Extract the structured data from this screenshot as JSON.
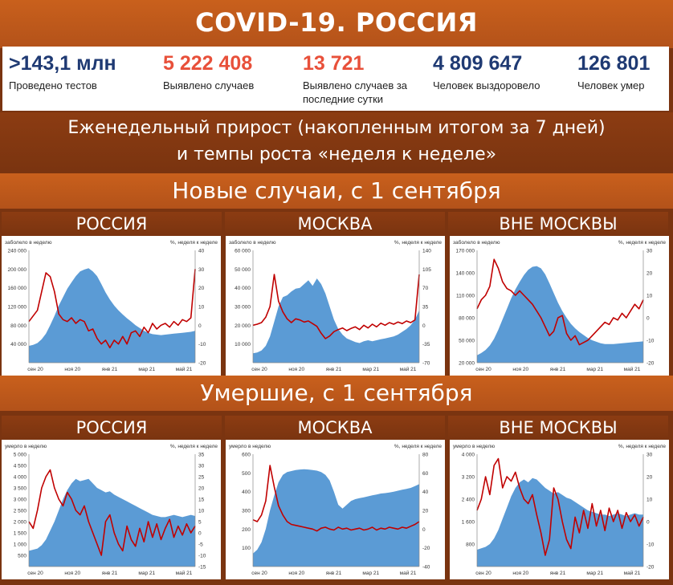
{
  "header": {
    "title": "COVID-19. РОССИЯ"
  },
  "stats": [
    {
      "value": ">143,1 млн",
      "label": "Проведено тестов",
      "color": "#1f3a73"
    },
    {
      "value": "5 222 408",
      "label": "Выявлено случаев",
      "color": "#e8503a"
    },
    {
      "value": "13 721",
      "label": "Выявлено случаев за последние сутки",
      "color": "#e8503a"
    },
    {
      "value": "4 809 647",
      "label": "Человек выздоровело",
      "color": "#1f3a73"
    },
    {
      "value": "126 801",
      "label": "Человек умер",
      "color": "#1f3a73"
    }
  ],
  "weekly_banner": {
    "line1": "Еженедельный прирост (накопленным итогом за 7 дней)",
    "line2": "и темпы роста «неделя к неделе»"
  },
  "sections": {
    "cases_title": "Новые случаи, с 1 сентября",
    "deaths_title": "Умершие, с 1 сентября"
  },
  "colors": {
    "area": "#5b9bd5",
    "line": "#c00000"
  },
  "chart_data": [
    {
      "type": "area",
      "title": "РОССИЯ",
      "section": "cases",
      "ylabel": "заболело в неделю",
      "y2label": "%, неделя к неделе",
      "xticks": [
        "сен 20",
        "ноя 20",
        "янв 21",
        "мар 21",
        "май 21"
      ],
      "ylim": [
        0,
        240000
      ],
      "yticks": [
        40000,
        80000,
        120000,
        160000,
        200000,
        240000
      ],
      "yticklabels": [
        "40 000",
        "80 000",
        "120 000",
        "160 000",
        "200 000",
        "240 000"
      ],
      "y2lim": [
        -20,
        40
      ],
      "y2ticks": [
        -20,
        -10,
        0,
        10,
        20,
        30,
        40
      ],
      "series": [
        {
          "axis": "left",
          "kind": "area",
          "values": [
            36000,
            38000,
            42000,
            50000,
            62000,
            80000,
            100000,
            122000,
            140000,
            158000,
            172000,
            185000,
            195000,
            199000,
            202000,
            195000,
            185000,
            168000,
            150000,
            135000,
            122000,
            112000,
            103000,
            95000,
            88000,
            80000,
            74000,
            68000,
            64000,
            61000,
            60000,
            59000,
            60000,
            61000,
            62000,
            63000,
            64000,
            65000,
            66000,
            68000
          ]
        },
        {
          "axis": "right",
          "kind": "line",
          "values": [
            2,
            5,
            8,
            18,
            28,
            26,
            18,
            6,
            3,
            2,
            4,
            1,
            3,
            2,
            -3,
            -2,
            -7,
            -10,
            -8,
            -12,
            -8,
            -10,
            -6,
            -10,
            -4,
            -3,
            -6,
            -1,
            -4,
            1,
            -2,
            0,
            1,
            -1,
            2,
            0,
            3,
            2,
            4,
            30
          ]
        }
      ]
    },
    {
      "type": "area",
      "title": "МОСКВА",
      "section": "cases",
      "ylabel": "заболело в неделю",
      "y2label": "%, неделя к неделе",
      "xticks": [
        "сен 20",
        "ноя 20",
        "янв 21",
        "мар 21",
        "май 21"
      ],
      "ylim": [
        0,
        60000
      ],
      "yticks": [
        10000,
        20000,
        30000,
        40000,
        50000,
        60000
      ],
      "yticklabels": [
        "10 000",
        "20 000",
        "30 000",
        "40 000",
        "50 000",
        "60 000"
      ],
      "y2lim": [
        -70,
        140
      ],
      "y2ticks": [
        -70,
        -35,
        0,
        35,
        70,
        105,
        140
      ],
      "series": [
        {
          "axis": "left",
          "kind": "area",
          "values": [
            5000,
            5500,
            6500,
            9000,
            14000,
            22000,
            30000,
            35000,
            36000,
            38000,
            39500,
            40000,
            42000,
            44000,
            41000,
            45000,
            42000,
            37000,
            30000,
            23000,
            18000,
            15000,
            13000,
            12000,
            11000,
            10500,
            11500,
            12000,
            11500,
            12000,
            12500,
            13000,
            13500,
            14000,
            15000,
            16500,
            18000,
            20000,
            23000,
            28000
          ]
        },
        {
          "axis": "right",
          "kind": "line",
          "values": [
            0,
            2,
            5,
            15,
            35,
            95,
            45,
            25,
            12,
            5,
            12,
            10,
            6,
            8,
            3,
            -2,
            -15,
            -25,
            -20,
            -12,
            -8,
            -5,
            -10,
            -6,
            -3,
            -8,
            0,
            -5,
            2,
            -3,
            4,
            0,
            5,
            2,
            6,
            3,
            8,
            5,
            10,
            95
          ]
        }
      ]
    },
    {
      "type": "area",
      "title": "ВНЕ МОСКВЫ",
      "section": "cases",
      "ylabel": "заболело в неделю",
      "y2label": "%, неделя к неделе",
      "xticks": [
        "сен 20",
        "ноя 20",
        "янв 21",
        "мар 21",
        "май 21"
      ],
      "ylim": [
        20000,
        170000
      ],
      "yticks": [
        20000,
        50000,
        80000,
        110000,
        140000,
        170000
      ],
      "yticklabels": [
        "20 000",
        "50 000",
        "80 000",
        "110 000",
        "140 000",
        "170 000"
      ],
      "y2lim": [
        -20,
        30
      ],
      "y2ticks": [
        -20,
        -10,
        0,
        10,
        20,
        30
      ],
      "series": [
        {
          "axis": "left",
          "kind": "area",
          "values": [
            30000,
            33000,
            37000,
            43000,
            52000,
            64000,
            78000,
            92000,
            106000,
            118000,
            128000,
            137000,
            144000,
            148000,
            149000,
            146000,
            138000,
            126000,
            113000,
            100000,
            89000,
            80000,
            72000,
            66000,
            61000,
            57000,
            53000,
            50000,
            48000,
            46000,
            45000,
            45000,
            45000,
            45500,
            46000,
            46500,
            47000,
            47500,
            48000,
            48500
          ]
        },
        {
          "axis": "right",
          "kind": "line",
          "values": [
            4,
            8,
            10,
            14,
            26,
            22,
            16,
            13,
            12,
            10,
            12,
            10,
            8,
            6,
            3,
            0,
            -4,
            -8,
            -6,
            0,
            1,
            -7,
            -10,
            -8,
            -12,
            -11,
            -10,
            -8,
            -6,
            -4,
            -2,
            -3,
            0,
            -1,
            2,
            0,
            3,
            6,
            4,
            8
          ]
        }
      ]
    },
    {
      "type": "area",
      "title": "РОССИЯ",
      "section": "deaths",
      "ylabel": "умерло в неделю",
      "y2label": "%, неделя к неделе",
      "xticks": [
        "сен 20",
        "ноя 20",
        "янв 21",
        "мар 21",
        "май 21"
      ],
      "ylim": [
        0,
        5000
      ],
      "yticks": [
        500,
        1000,
        1500,
        2000,
        2500,
        3000,
        3500,
        4000,
        4500,
        5000
      ],
      "yticklabels": [
        "500",
        "1 000",
        "1 500",
        "2 000",
        "2 500",
        "3 000",
        "3 500",
        "4 000",
        "4 500",
        "5 000"
      ],
      "y2lim": [
        -15,
        35
      ],
      "y2ticks": [
        -15,
        -10,
        -5,
        0,
        5,
        10,
        15,
        20,
        25,
        30,
        35
      ],
      "series": [
        {
          "axis": "left",
          "kind": "area",
          "values": [
            700,
            750,
            800,
            950,
            1200,
            1600,
            2000,
            2500,
            3000,
            3400,
            3700,
            3900,
            3800,
            3850,
            3900,
            3700,
            3500,
            3400,
            3300,
            3350,
            3200,
            3100,
            3000,
            2900,
            2800,
            2700,
            2600,
            2500,
            2400,
            2300,
            2250,
            2200,
            2200,
            2250,
            2300,
            2250,
            2200,
            2250,
            2300,
            2250
          ]
        },
        {
          "axis": "right",
          "kind": "line",
          "values": [
            5,
            2,
            10,
            20,
            25,
            28,
            20,
            15,
            12,
            18,
            15,
            10,
            8,
            12,
            5,
            0,
            -5,
            -10,
            5,
            8,
            0,
            -5,
            -8,
            3,
            -3,
            -6,
            2,
            -4,
            5,
            -2,
            4,
            -3,
            2,
            6,
            -2,
            3,
            -1,
            4,
            0,
            3
          ]
        }
      ]
    },
    {
      "type": "area",
      "title": "МОСКВА",
      "section": "deaths",
      "ylabel": "умерло в неделю",
      "y2label": "%, неделя к неделе",
      "xticks": [
        "сен 20",
        "ноя 20",
        "янв 21",
        "мар 21",
        "май 21"
      ],
      "ylim": [
        0,
        600
      ],
      "yticks": [
        100,
        200,
        300,
        400,
        500,
        600
      ],
      "yticklabels": [
        "100",
        "200",
        "300",
        "400",
        "500",
        "600"
      ],
      "y2lim": [
        -40,
        80
      ],
      "y2ticks": [
        -40,
        -20,
        0,
        20,
        40,
        60,
        80
      ],
      "series": [
        {
          "axis": "left",
          "kind": "area",
          "values": [
            70,
            90,
            130,
            200,
            300,
            380,
            450,
            490,
            505,
            510,
            515,
            518,
            520,
            518,
            515,
            512,
            505,
            490,
            460,
            400,
            330,
            310,
            330,
            350,
            360,
            365,
            370,
            375,
            380,
            385,
            390,
            392,
            395,
            400,
            405,
            410,
            415,
            420,
            430,
            440
          ]
        },
        {
          "axis": "right",
          "kind": "line",
          "values": [
            10,
            8,
            15,
            30,
            68,
            45,
            25,
            15,
            8,
            5,
            4,
            3,
            2,
            1,
            0,
            -2,
            1,
            2,
            0,
            -1,
            2,
            0,
            1,
            -1,
            0,
            1,
            -1,
            0,
            2,
            -1,
            1,
            0,
            2,
            1,
            0,
            2,
            1,
            3,
            5,
            8
          ]
        }
      ]
    },
    {
      "type": "area",
      "title": "ВНЕ МОСКВЫ",
      "section": "deaths",
      "ylabel": "умерло в неделю",
      "y2label": "%, неделя к неделе",
      "xticks": [
        "сен 20",
        "ноя 20",
        "янв 21",
        "мар 21",
        "май 21"
      ],
      "ylim": [
        0,
        4000
      ],
      "yticks": [
        800,
        1600,
        2400,
        3200,
        4000
      ],
      "yticklabels": [
        "800",
        "1 600",
        "2 400",
        "3 200",
        "4 000"
      ],
      "y2lim": [
        -20,
        30
      ],
      "y2ticks": [
        -20,
        -10,
        0,
        10,
        20,
        30
      ],
      "series": [
        {
          "axis": "left",
          "kind": "area",
          "values": [
            600,
            650,
            700,
            800,
            1000,
            1300,
            1700,
            2100,
            2500,
            2800,
            3000,
            3100,
            3000,
            3150,
            3100,
            2950,
            2800,
            2700,
            2600,
            2650,
            2550,
            2450,
            2400,
            2300,
            2200,
            2100,
            2000,
            1950,
            1900,
            1850,
            1850,
            1800,
            1850,
            1900,
            1850,
            1800,
            1850,
            1900,
            1850,
            1850
          ]
        },
        {
          "axis": "right",
          "kind": "line",
          "values": [
            5,
            10,
            20,
            12,
            25,
            28,
            15,
            20,
            18,
            22,
            15,
            10,
            8,
            12,
            3,
            -5,
            -15,
            -8,
            15,
            10,
            0,
            -8,
            -12,
            2,
            -5,
            5,
            -3,
            8,
            -2,
            5,
            -4,
            6,
            0,
            5,
            -3,
            4,
            0,
            3,
            -2,
            2
          ]
        }
      ]
    }
  ]
}
